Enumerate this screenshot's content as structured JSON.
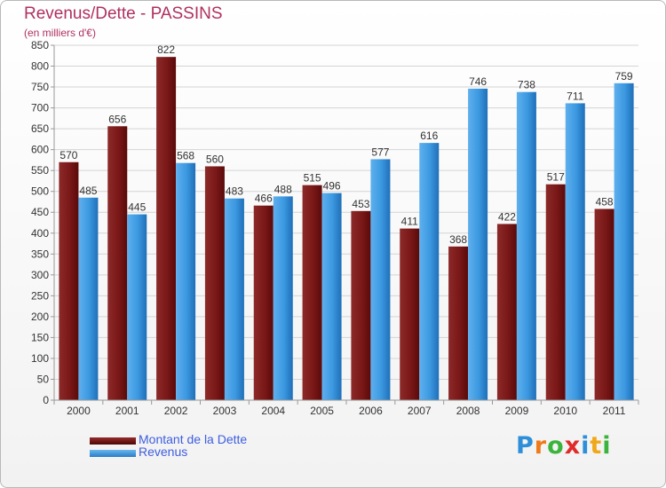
{
  "colors": {
    "dette": "#7a1a1a",
    "revenus": "#2f8fdc",
    "title": "#b03060",
    "legend_text": "#3d5ee0"
  },
  "chart_data": {
    "type": "bar",
    "title": "Revenus/Dette - PASSINS",
    "subtitle": "(en milliers d'€)",
    "xlabel": "",
    "ylabel": "",
    "categories": [
      "2000",
      "2001",
      "2002",
      "2003",
      "2004",
      "2005",
      "2006",
      "2007",
      "2008",
      "2009",
      "2010",
      "2011"
    ],
    "series": [
      {
        "name": "Montant de la Dette",
        "values": [
          570,
          656,
          822,
          560,
          466,
          515,
          453,
          411,
          368,
          422,
          517,
          458
        ]
      },
      {
        "name": "Revenus",
        "values": [
          485,
          445,
          568,
          483,
          488,
          496,
          577,
          616,
          746,
          738,
          711,
          759
        ]
      }
    ],
    "ylim": [
      0,
      850
    ],
    "ytick_step": 50,
    "grid": true,
    "legend_position": "bottom-left"
  },
  "logo": {
    "text": "Proxiti",
    "letters": [
      {
        "ch": "P",
        "color": "#2e8fd8"
      },
      {
        "ch": "r",
        "color": "#f07a1a"
      },
      {
        "ch": "o",
        "color": "#3cb33c"
      },
      {
        "ch": "x",
        "color": "#e02b2b"
      },
      {
        "ch": "i",
        "color": "#2e8fd8"
      },
      {
        "ch": "t",
        "color": "#f0a81a"
      },
      {
        "ch": "i",
        "color": "#3cb33c"
      }
    ]
  }
}
